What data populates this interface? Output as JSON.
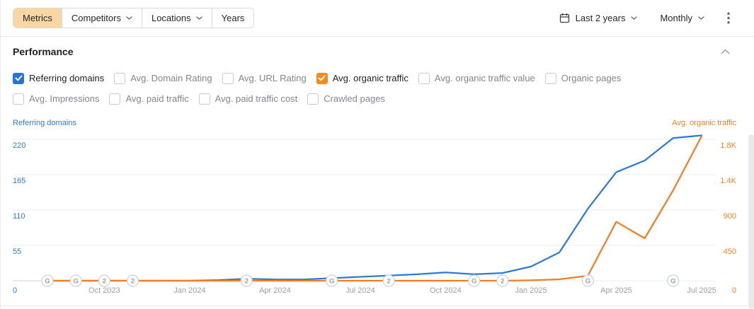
{
  "toolbar": {
    "tabs": [
      {
        "label": "Metrics",
        "active": true,
        "chevron": false
      },
      {
        "label": "Competitors",
        "active": false,
        "chevron": true
      },
      {
        "label": "Locations",
        "active": false,
        "chevron": true
      },
      {
        "label": "Years",
        "active": false,
        "chevron": false
      }
    ],
    "date_range_label": "Last 2 years",
    "granularity_label": "Monthly"
  },
  "panel": {
    "title": "Performance"
  },
  "metric_toggles": {
    "row1": [
      {
        "label": "Referring domains",
        "checked": true,
        "check_color": "#2774d9"
      },
      {
        "label": "Avg. Domain Rating",
        "checked": false
      },
      {
        "label": "Avg. URL Rating",
        "checked": false
      },
      {
        "label": "Avg. organic traffic",
        "checked": true,
        "check_color": "#f78a1e"
      },
      {
        "label": "Avg. organic traffic value",
        "checked": false
      },
      {
        "label": "Organic pages",
        "checked": false
      }
    ],
    "row2": [
      {
        "label": "Avg. Impressions",
        "checked": false
      },
      {
        "label": "Avg. paid traffic",
        "checked": false
      },
      {
        "label": "Avg. paid traffic cost",
        "checked": false
      },
      {
        "label": "Crawled pages",
        "checked": false
      }
    ]
  },
  "chart_data": {
    "type": "line",
    "x_months": [
      "Aug 2023",
      "Sep 2023",
      "Oct 2023",
      "Nov 2023",
      "Dec 2023",
      "Jan 2024",
      "Feb 2024",
      "Mar 2024",
      "Apr 2024",
      "May 2024",
      "Jun 2024",
      "Jul 2024",
      "Aug 2024",
      "Sep 2024",
      "Oct 2024",
      "Nov 2024",
      "Dec 2024",
      "Jan 2025",
      "Feb 2025",
      "Mar 2025",
      "Apr 2025",
      "May 2025",
      "Jun 2025",
      "Jul 2025"
    ],
    "x_tick_labels": [
      {
        "i": 2,
        "label": "Oct 2023"
      },
      {
        "i": 5,
        "label": "Jan 2024"
      },
      {
        "i": 8,
        "label": "Apr 2024"
      },
      {
        "i": 11,
        "label": "Jul 2024"
      },
      {
        "i": 14,
        "label": "Oct 2024"
      },
      {
        "i": 17,
        "label": "Jan 2025"
      },
      {
        "i": 20,
        "label": "Apr 2025"
      },
      {
        "i": 23,
        "label": "Jul 2025"
      }
    ],
    "left_axis": {
      "title": "Referring domains",
      "color": "#2b7bd8",
      "ticks": [
        "220",
        "165",
        "110",
        "55",
        "0"
      ],
      "max": 220
    },
    "right_axis": {
      "title": "Avg. organic traffic",
      "color": "#f5831f",
      "ticks": [
        "1.8K",
        "1.4K",
        "900",
        "450",
        "0"
      ],
      "max": 1800
    },
    "series": [
      {
        "name": "Referring domains",
        "axis": "left",
        "color": "#2b7cd6",
        "values": [
          0,
          0,
          0,
          0,
          0,
          0,
          1,
          3,
          2,
          2,
          4,
          6,
          8,
          10,
          13,
          10,
          12,
          22,
          44,
          112,
          169,
          187,
          222,
          226
        ]
      },
      {
        "name": "Avg. organic traffic",
        "axis": "right",
        "color": "#f67c20",
        "values": [
          0,
          0,
          0,
          0,
          0,
          0,
          0,
          0,
          0,
          0,
          0,
          0,
          0,
          0,
          0,
          0,
          0,
          5,
          18,
          63,
          750,
          540,
          1150,
          1840
        ]
      }
    ],
    "markers": [
      {
        "i": 0,
        "label": "G"
      },
      {
        "i": 1,
        "label": "G"
      },
      {
        "i": 2,
        "label": "2"
      },
      {
        "i": 3,
        "label": "2"
      },
      {
        "i": 7,
        "label": "2"
      },
      {
        "i": 10,
        "label": "G"
      },
      {
        "i": 12,
        "label": "2"
      },
      {
        "i": 15,
        "label": "G"
      },
      {
        "i": 16,
        "label": "2"
      },
      {
        "i": 19,
        "label": "G"
      },
      {
        "i": 22,
        "label": "G"
      }
    ],
    "grid": true,
    "legend_position": "none"
  },
  "colors": {
    "active_tab_bg": "#fad7a2",
    "blue_line": "#2b7cd6",
    "orange_line": "#f67c20",
    "gridline": "#ebedf0",
    "muted_text": "#9aa0a8"
  }
}
